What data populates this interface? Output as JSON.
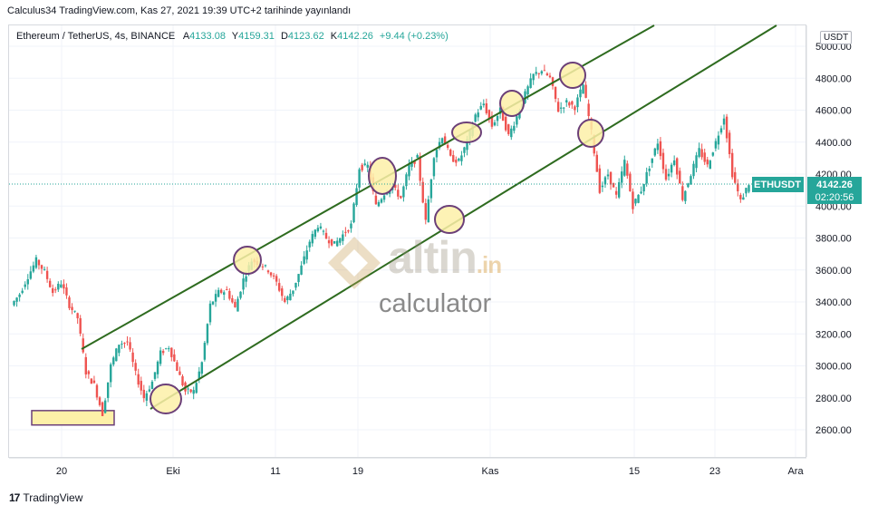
{
  "header": {
    "published": "Calculus34 TradingView.com, Kas 27, 2021 19:39 UTC+2 tarihinde yayınlandı"
  },
  "legend": {
    "symbol": "Ethereum / TetherUS, 4s, BINANCE",
    "open_label": "A",
    "open": "4133.08",
    "high_label": "Y",
    "high": "4159.31",
    "low_label": "D",
    "low": "4123.62",
    "close_label": "K",
    "close": "4142.26",
    "change": "+9.44 (+0.23%)"
  },
  "currency_button": "USDT",
  "price_tag": {
    "symbol": "ETHUSDT",
    "price": "4142.26",
    "countdown": "02:20:56"
  },
  "watermark": {
    "brand": "altin",
    "suffix": ".in",
    "tagline": "calculator"
  },
  "footer": {
    "logo": "17",
    "name": "TradingView"
  },
  "colors": {
    "up": "#26a69a",
    "down": "#ef5350",
    "channel": "#2e6b1f",
    "highlight_fill": "#fdf0a8",
    "highlight_stroke": "#6b3f78"
  },
  "chart_data": {
    "type": "candlestick",
    "symbol": "ETHUSDT",
    "interval": "4h",
    "y_ticks": [
      "2600.00",
      "2800.00",
      "3000.00",
      "3200.00",
      "3400.00",
      "3600.00",
      "3800.00",
      "4000.00",
      "4200.00",
      "4400.00",
      "4600.00",
      "4800.00",
      "5000.00"
    ],
    "x_ticks": [
      "20",
      "Eki",
      "11",
      "19",
      "Kas",
      "15",
      "23",
      "Ara"
    ],
    "ylim": [
      2440,
      5100
    ],
    "last_price": 4142.26,
    "price_path": [
      [
        0,
        3380
      ],
      [
        1,
        3450
      ],
      [
        2,
        3560
      ],
      [
        3,
        3660
      ],
      [
        4,
        3590
      ],
      [
        5,
        3460
      ],
      [
        6,
        3520
      ],
      [
        7,
        3380
      ],
      [
        8,
        3300
      ],
      [
        9,
        2960
      ],
      [
        10,
        2880
      ],
      [
        11,
        2700
      ],
      [
        12,
        3000
      ],
      [
        13,
        3140
      ],
      [
        14,
        3150
      ],
      [
        15,
        2950
      ],
      [
        16,
        2800
      ],
      [
        17,
        2900
      ],
      [
        18,
        3080
      ],
      [
        19,
        3120
      ],
      [
        20,
        2980
      ],
      [
        21,
        2840
      ],
      [
        22,
        2840
      ],
      [
        23,
        3020
      ],
      [
        24,
        3380
      ],
      [
        25,
        3460
      ],
      [
        26,
        3470
      ],
      [
        27,
        3360
      ],
      [
        28,
        3540
      ],
      [
        29,
        3660
      ],
      [
        30,
        3640
      ],
      [
        31,
        3600
      ],
      [
        32,
        3520
      ],
      [
        33,
        3400
      ],
      [
        34,
        3480
      ],
      [
        35,
        3620
      ],
      [
        36,
        3780
      ],
      [
        37,
        3880
      ],
      [
        38,
        3800
      ],
      [
        39,
        3760
      ],
      [
        40,
        3820
      ],
      [
        41,
        3880
      ],
      [
        42,
        4240
      ],
      [
        43,
        4250
      ],
      [
        44,
        4000
      ],
      [
        45,
        4080
      ],
      [
        46,
        4120
      ],
      [
        47,
        4050
      ],
      [
        48,
        4250
      ],
      [
        49,
        4300
      ],
      [
        50,
        3900
      ],
      [
        51,
        4320
      ],
      [
        52,
        4440
      ],
      [
        53,
        4300
      ],
      [
        54,
        4280
      ],
      [
        55,
        4400
      ],
      [
        56,
        4570
      ],
      [
        57,
        4640
      ],
      [
        58,
        4500
      ],
      [
        59,
        4600
      ],
      [
        60,
        4440
      ],
      [
        61,
        4560
      ],
      [
        62,
        4700
      ],
      [
        63,
        4820
      ],
      [
        64,
        4850
      ],
      [
        65,
        4800
      ],
      [
        66,
        4600
      ],
      [
        67,
        4650
      ],
      [
        68,
        4620
      ],
      [
        69,
        4760
      ],
      [
        70,
        4460
      ],
      [
        71,
        4100
      ],
      [
        72,
        4200
      ],
      [
        73,
        4060
      ],
      [
        74,
        4280
      ],
      [
        75,
        4000
      ],
      [
        76,
        4100
      ],
      [
        77,
        4250
      ],
      [
        78,
        4400
      ],
      [
        79,
        4170
      ],
      [
        80,
        4300
      ],
      [
        81,
        4050
      ],
      [
        82,
        4200
      ],
      [
        83,
        4350
      ],
      [
        84,
        4250
      ],
      [
        85,
        4400
      ],
      [
        86,
        4560
      ],
      [
        87,
        4200
      ],
      [
        88,
        4030
      ],
      [
        89,
        4142
      ]
    ],
    "channel_upper": [
      [
        3100,
        21.5
      ],
      [
        5200,
        86
      ]
    ],
    "channel_lower": [
      [
        2740,
        37
      ],
      [
        5180,
        98
      ]
    ],
    "highlighted_levels": [
      {
        "x": 19,
        "price": 2780
      },
      {
        "x": 30,
        "price": 3660
      },
      {
        "x": 42,
        "price": 4200
      },
      {
        "x": 51,
        "price": 3900
      },
      {
        "x": 53,
        "price": 4470
      },
      {
        "x": 62,
        "price": 4640
      },
      {
        "x": 68,
        "price": 4830
      },
      {
        "x": 71,
        "price": 4450
      }
    ],
    "support_box": {
      "x_from": 2,
      "x_to": 12,
      "price_from": 2630,
      "price_to": 2720
    }
  }
}
